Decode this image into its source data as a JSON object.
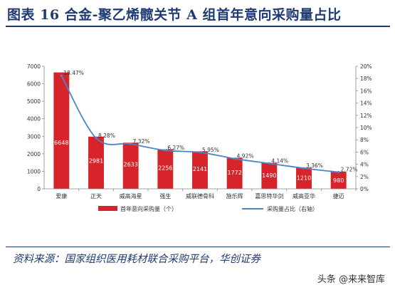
{
  "figure_title": "图表 16   合金-聚乙烯髋关节 A 组首年意向采购量占比",
  "source_note": "资料来源：国家组织医用耗材联合采购平台，华创证券",
  "watermark": "头条 @来来智库",
  "colors": {
    "bar": "#d7242b",
    "line": "#4a86c8",
    "title": "#1f3b73"
  },
  "chart_data": {
    "type": "bar",
    "categories": [
      "爱康",
      "正天",
      "威高海星",
      "强生",
      "威联德骨科",
      "施乐辉",
      "嘉思特华剑",
      "威高亚华",
      "捷迈"
    ],
    "series": [
      {
        "name": "首年意向采购量（个）",
        "type": "bar",
        "axis": "left",
        "values": [
          6648,
          2981,
          2633,
          2256,
          2141,
          1772,
          1490,
          1210,
          980
        ],
        "labels": [
          "6648",
          "2981",
          "2633",
          "2256",
          "2141",
          "1772",
          "1490",
          "1210",
          "980"
        ]
      },
      {
        "name": "采购量占比（右轴）",
        "type": "line",
        "axis": "right",
        "values": [
          18.47,
          8.28,
          7.32,
          6.27,
          5.95,
          4.92,
          4.14,
          3.36,
          2.72
        ],
        "labels": [
          "18.47%",
          "8.28%",
          "7.32%",
          "6.27%",
          "5.95%",
          "4.92%",
          "4.14%",
          "3.36%",
          "2.72%"
        ]
      }
    ],
    "y_left": {
      "min": 0,
      "max": 7000,
      "ticks": [
        "0",
        "1000",
        "2000",
        "3000",
        "4000",
        "5000",
        "6000",
        "7000"
      ]
    },
    "y_right": {
      "min": 0,
      "max": 20,
      "ticks": [
        "0%",
        "2%",
        "4%",
        "6%",
        "8%",
        "10%",
        "12%",
        "14%",
        "16%",
        "18%",
        "20%"
      ]
    },
    "legend_position": "bottom",
    "grid": false
  }
}
